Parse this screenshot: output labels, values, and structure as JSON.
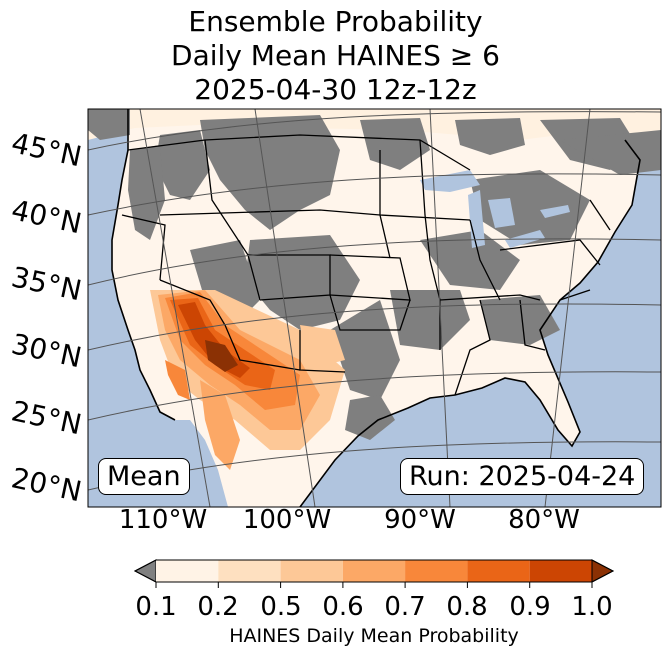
{
  "title": {
    "line1": "Ensemble Probability",
    "line2": "Daily Mean HAINES ≥ 6",
    "line3": "2025-04-30 12z-12z"
  },
  "map": {
    "latitude_labels": [
      "45°N",
      "40°N",
      "35°N",
      "30°N",
      "25°N",
      "20°N"
    ],
    "longitude_labels": [
      "110°W",
      "100°W",
      "90°W",
      "80°W"
    ],
    "stat_label": "Mean",
    "run_label": "Run: 2025-04-24",
    "colors": {
      "ocean": "#b0c4de",
      "no_data": "#808080",
      "graticule": "#555555"
    }
  },
  "colorbar": {
    "label": "HAINES Daily Mean Probability",
    "ticks": [
      "0.1",
      "0.2",
      "0.5",
      "0.6",
      "0.7",
      "0.8",
      "0.9",
      "1.0"
    ],
    "under_color": "#808080",
    "colors": [
      "#fff3e6",
      "#fee0c0",
      "#fdc897",
      "#fca866",
      "#f8873a",
      "#ea6517",
      "#cc4503"
    ],
    "over_color": "#8b3104"
  }
}
